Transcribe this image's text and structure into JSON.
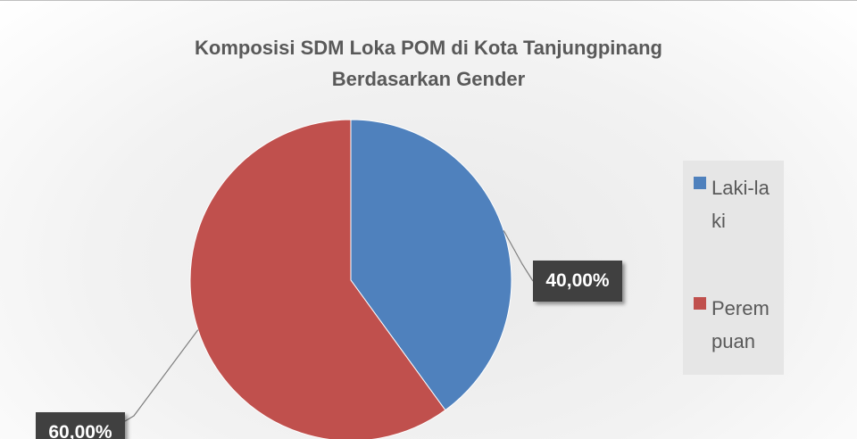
{
  "chart_data": {
    "type": "pie",
    "title": "Komposisi SDM Loka POM di Kota Tanjungpinang Berdasarkan Gender",
    "categories": [
      "Laki-laki",
      "Perempuan"
    ],
    "values": [
      40,
      60
    ],
    "value_labels": [
      "40,00%",
      "60,00%"
    ],
    "colors": [
      "#4f81bd",
      "#c0504d"
    ],
    "legend": "right"
  }
}
